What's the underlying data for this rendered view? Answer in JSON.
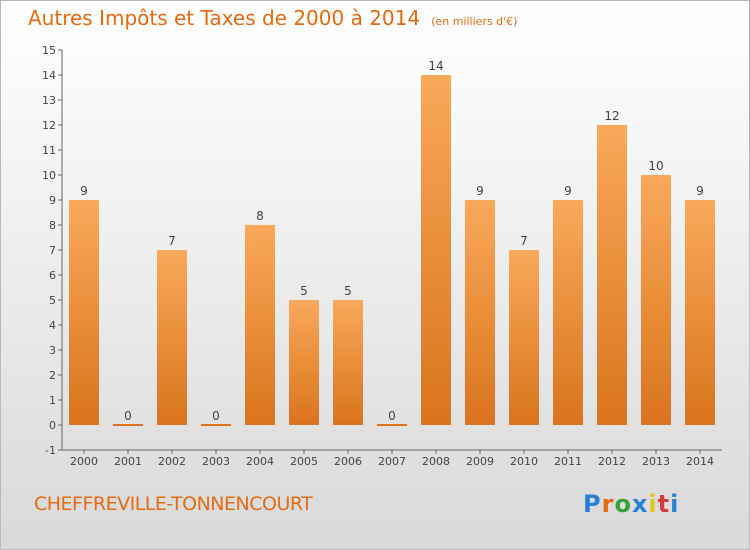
{
  "page": {
    "title": "Autres Impôts et Taxes de 2000 à 2014",
    "subtitle": "(en milliers d'€)",
    "commune": "CHEFFREVILLE-TONNENCOURT",
    "logo": "Proxiti"
  },
  "colors": {
    "accent": "#e46b12",
    "bar_light": "#f9a95a",
    "bar_dark": "#d9741c",
    "axis": "#666666",
    "label": "#444444"
  },
  "chart_data": {
    "type": "bar",
    "title": "Autres Impôts et Taxes de 2000 à 2014",
    "subtitle": "(en milliers d'€)",
    "xlabel": "",
    "ylabel": "",
    "categories": [
      "2000",
      "2001",
      "2002",
      "2003",
      "2004",
      "2005",
      "2006",
      "2007",
      "2008",
      "2009",
      "2010",
      "2011",
      "2012",
      "2013",
      "2014"
    ],
    "values": [
      9,
      0,
      7,
      0,
      8,
      5,
      5,
      0,
      14,
      9,
      7,
      9,
      12,
      10,
      9
    ],
    "value_labels": [
      "9",
      "0",
      "7",
      "0",
      "8",
      "5",
      "5",
      "0",
      "14",
      "9",
      "7",
      "9",
      "12",
      "10",
      "9"
    ],
    "ylim": [
      -1,
      15
    ],
    "y_ticks": [
      "-1",
      "0",
      "1",
      "2",
      "3",
      "4",
      "5",
      "6",
      "7",
      "8",
      "9",
      "10",
      "11",
      "12",
      "13",
      "14",
      "15"
    ],
    "grid": false,
    "legend": "none"
  }
}
